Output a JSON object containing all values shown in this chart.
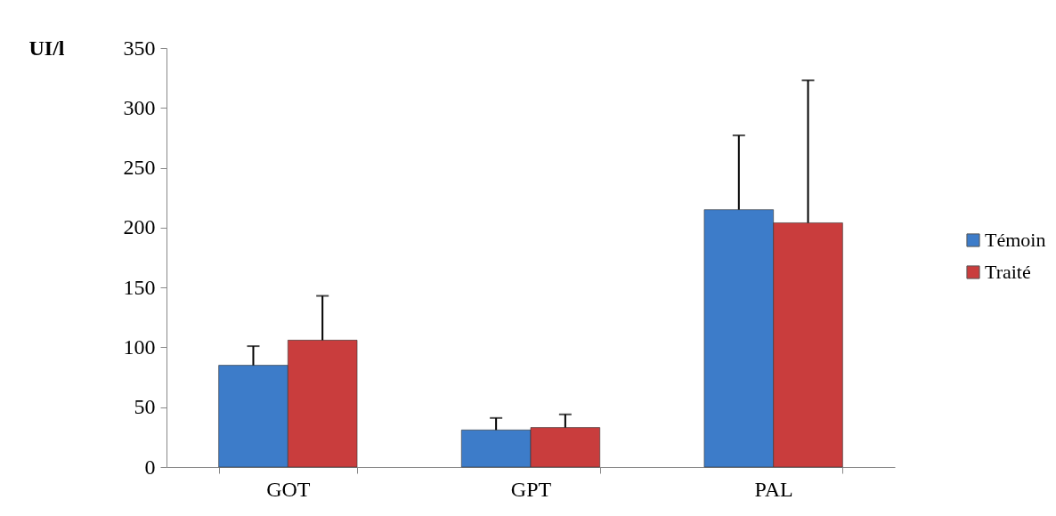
{
  "chart_data": {
    "type": "bar",
    "ylabel": "UI/l",
    "categories": [
      "GOT",
      "GPT",
      "PAL"
    ],
    "series": [
      {
        "name": "Témoin",
        "color": "#3d7cc9",
        "values": [
          85,
          31,
          215
        ],
        "errors": [
          16,
          10,
          62
        ]
      },
      {
        "name": "Traité",
        "color": "#c93d3d",
        "values": [
          106,
          33,
          204
        ],
        "errors": [
          37,
          11,
          119
        ]
      }
    ],
    "ylim": [
      0,
      350
    ],
    "yticks": [
      0,
      50,
      100,
      150,
      200,
      250,
      300,
      350
    ],
    "grid": false,
    "legend": "right"
  }
}
